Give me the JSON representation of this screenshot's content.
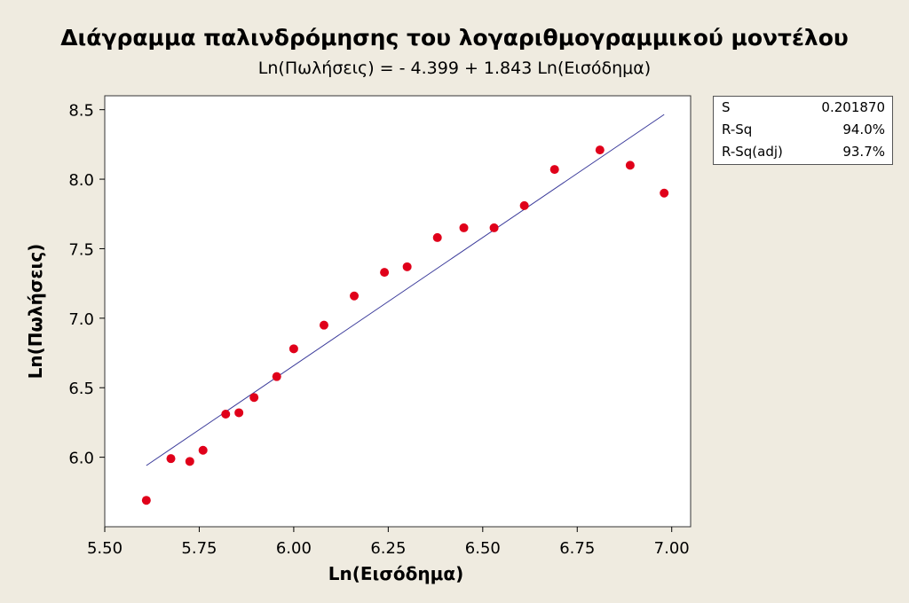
{
  "chart_data": {
    "type": "scatter",
    "title": "Διάγραμμα παλινδρόμησης του λογαριθμογραμμικού μοντέλου",
    "subtitle": "Ln(Πωλήσεις) =  - 4.399 + 1.843 Ln(Εισόδημα)",
    "xlabel": "Ln(Εισόδημα)",
    "ylabel": "Ln(Πωλήσεις)",
    "xlim": [
      5.5,
      7.05
    ],
    "ylim": [
      5.5,
      8.6
    ],
    "x_ticks": [
      "5.50",
      "5.75",
      "6.00",
      "6.25",
      "6.50",
      "6.75",
      "7.00"
    ],
    "y_ticks": [
      "6.0",
      "6.5",
      "7.0",
      "7.5",
      "8.0",
      "8.5"
    ],
    "points": [
      [
        5.61,
        5.69
      ],
      [
        5.675,
        5.99
      ],
      [
        5.725,
        5.97
      ],
      [
        5.76,
        6.05
      ],
      [
        5.82,
        6.31
      ],
      [
        5.855,
        6.32
      ],
      [
        5.895,
        6.43
      ],
      [
        5.955,
        6.58
      ],
      [
        6.0,
        6.78
      ],
      [
        6.08,
        6.95
      ],
      [
        6.16,
        7.16
      ],
      [
        6.24,
        7.33
      ],
      [
        6.3,
        7.37
      ],
      [
        6.38,
        7.58
      ],
      [
        6.45,
        7.65
      ],
      [
        6.53,
        7.65
      ],
      [
        6.61,
        7.81
      ],
      [
        6.69,
        8.07
      ],
      [
        6.81,
        8.21
      ],
      [
        6.89,
        8.1
      ],
      [
        6.98,
        7.9
      ]
    ],
    "fit_line": {
      "intercept": -4.399,
      "slope": 1.843,
      "x_range": [
        5.61,
        6.98
      ],
      "color": "#3a3a9a"
    },
    "point_color": "#e0001a",
    "grid": false
  },
  "stats": [
    {
      "label": "S",
      "value": "0.201870"
    },
    {
      "label": "R-Sq",
      "value": "94.0%"
    },
    {
      "label": "R-Sq(adj)",
      "value": "93.7%"
    }
  ]
}
